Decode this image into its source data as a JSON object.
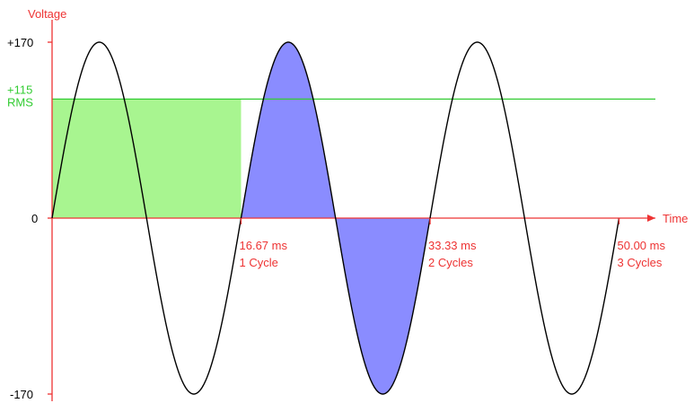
{
  "diagram": {
    "y_axis_label": "Voltage",
    "x_axis_label": "Time",
    "y_ticks": {
      "peak_pos": "+170",
      "rms_value": "+115",
      "rms_label": "RMS",
      "zero": "0",
      "peak_neg": "-170"
    },
    "x_ticks": [
      {
        "time": "16.67 ms",
        "cycles": "1 Cycle"
      },
      {
        "time": "33.33 ms",
        "cycles": "2 Cycles"
      },
      {
        "time": "50.00 ms",
        "cycles": "3 Cycles"
      }
    ],
    "colors": {
      "axis": "#ee3333",
      "rms": "#33cc33",
      "rms_fill": "#a8f590",
      "cycle_fill": "#8a8cff",
      "wave": "#000000"
    }
  },
  "chart_data": {
    "type": "line",
    "series": [
      {
        "function": "sine",
        "peak": 170,
        "period_ms": 16.67,
        "cycles": 3
      }
    ],
    "rms": 115,
    "ylim": [
      -170,
      170
    ],
    "xlim_ms": [
      0,
      50.0
    ],
    "highlighted_cycle": 2
  }
}
